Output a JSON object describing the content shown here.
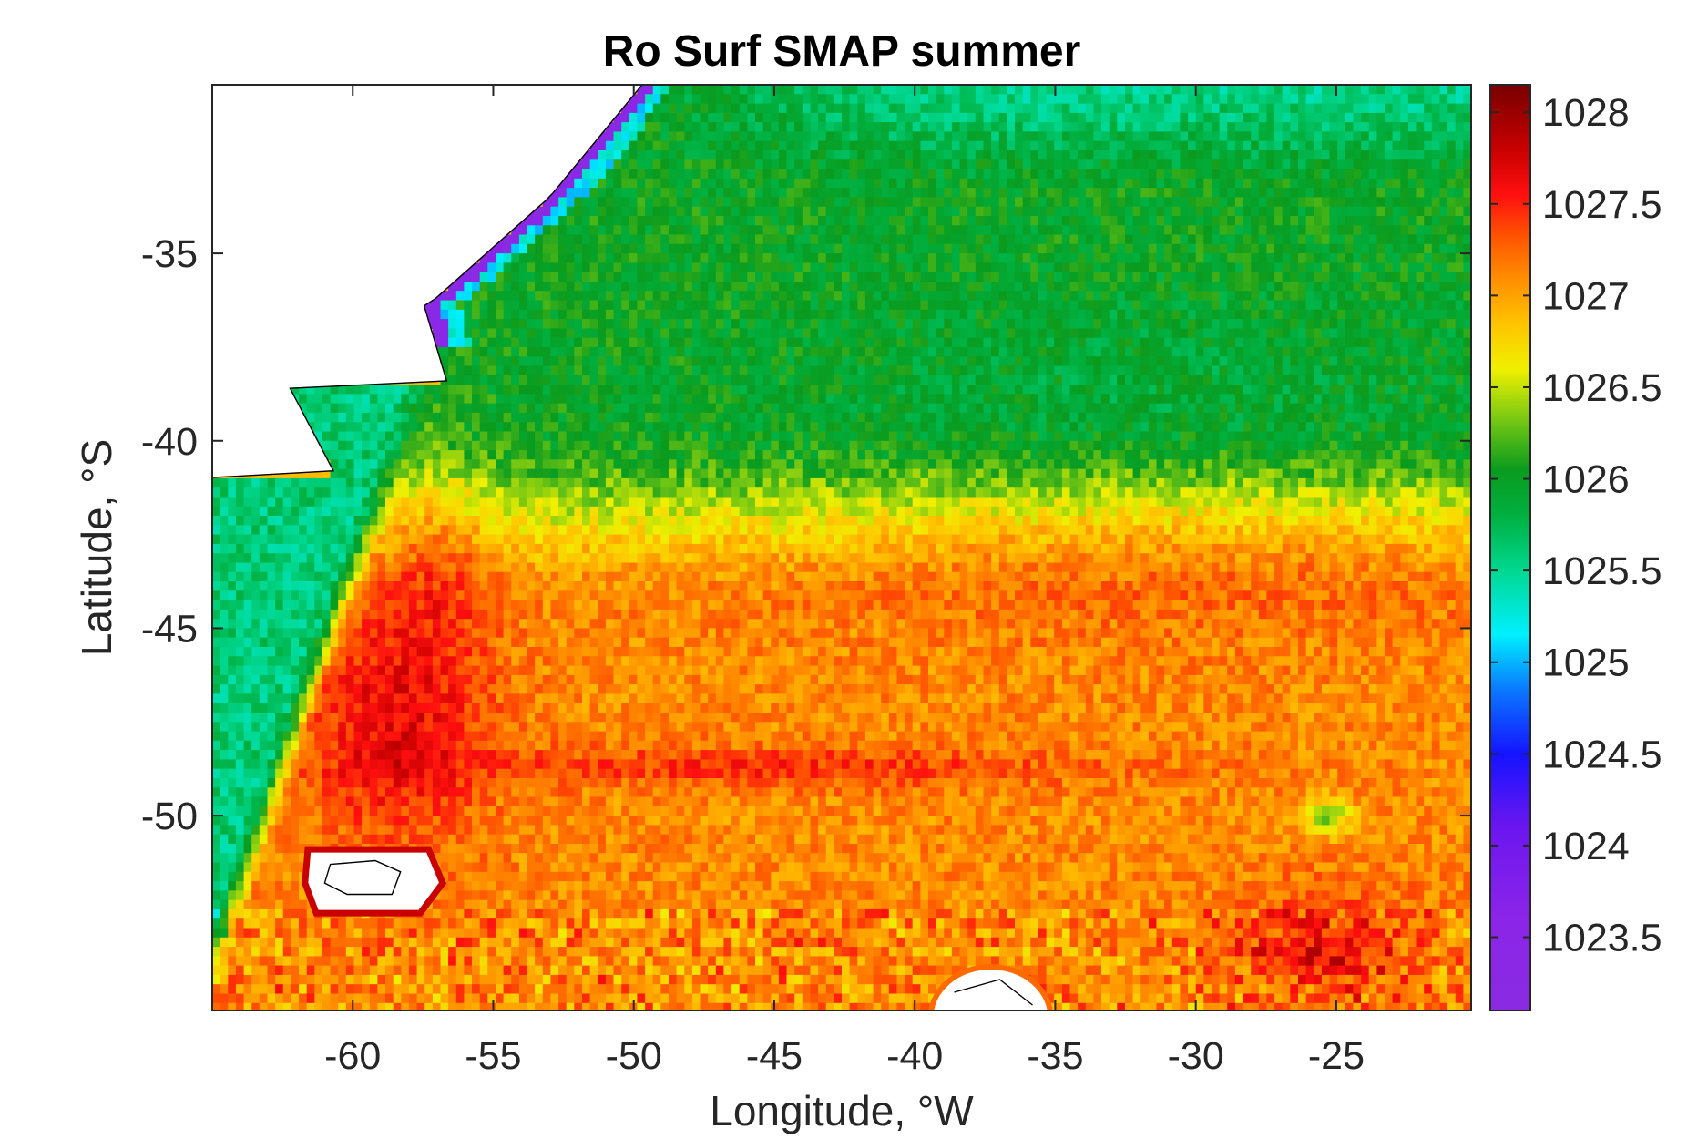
{
  "chart_data": {
    "type": "heatmap",
    "title": "Ro Surf SMAP summer",
    "xlabel": "Longitude, °W",
    "ylabel": "Latitude, °S",
    "xlim": [
      -65,
      -20.2
    ],
    "ylim": [
      -55.2,
      -30.5
    ],
    "x_ticks": [
      {
        "value": -60,
        "label": "-60"
      },
      {
        "value": -55,
        "label": "-55"
      },
      {
        "value": -50,
        "label": "-50"
      },
      {
        "value": -45,
        "label": "-45"
      },
      {
        "value": -40,
        "label": "-40"
      },
      {
        "value": -35,
        "label": "-35"
      },
      {
        "value": -30,
        "label": "-30"
      },
      {
        "value": -25,
        "label": "-25"
      }
    ],
    "y_ticks": [
      {
        "value": -35,
        "label": "-35"
      },
      {
        "value": -40,
        "label": "-40"
      },
      {
        "value": -45,
        "label": "-45"
      },
      {
        "value": -50,
        "label": "-50"
      }
    ],
    "colorbar": {
      "range": [
        1023.1,
        1028.15
      ],
      "ticks": [
        {
          "value": 1028,
          "label": "1028"
        },
        {
          "value": 1027.5,
          "label": "1027.5"
        },
        {
          "value": 1027,
          "label": "1027"
        },
        {
          "value": 1026.5,
          "label": "1026.5"
        },
        {
          "value": 1026,
          "label": "1026"
        },
        {
          "value": 1025.5,
          "label": "1025.5"
        },
        {
          "value": 1025,
          "label": "1025"
        },
        {
          "value": 1024.5,
          "label": "1024.5"
        },
        {
          "value": 1024,
          "label": "1024"
        },
        {
          "value": 1023.5,
          "label": "1023.5"
        }
      ],
      "colormap": [
        {
          "value": 1023.1,
          "color": "#8a2be2"
        },
        {
          "value": 1023.6,
          "color": "#8b25e8"
        },
        {
          "value": 1024.1,
          "color": "#6b16ef"
        },
        {
          "value": 1024.5,
          "color": "#1414ff"
        },
        {
          "value": 1024.85,
          "color": "#0a78ff"
        },
        {
          "value": 1025.15,
          "color": "#00f0ff"
        },
        {
          "value": 1025.5,
          "color": "#00d890"
        },
        {
          "value": 1025.8,
          "color": "#00b040"
        },
        {
          "value": 1026.05,
          "color": "#0a9b1e"
        },
        {
          "value": 1026.3,
          "color": "#6dc414"
        },
        {
          "value": 1026.6,
          "color": "#f0f000"
        },
        {
          "value": 1026.85,
          "color": "#ffc300"
        },
        {
          "value": 1027.1,
          "color": "#ff8c00"
        },
        {
          "value": 1027.3,
          "color": "#ff5a00"
        },
        {
          "value": 1027.55,
          "color": "#ff0f0f"
        },
        {
          "value": 1027.8,
          "color": "#c80000"
        },
        {
          "value": 1028.15,
          "color": "#780000"
        }
      ]
    },
    "field_features": {
      "background_level": 1026.9,
      "land_color": "#ffffff",
      "coastline_color": "#000000",
      "nan_color": "#ffffff",
      "northern_band": {
        "lat_min": -41.5,
        "lat_max": -30.5,
        "value": 1026.0,
        "north_edge_value": 1025.5
      },
      "southern_band": {
        "lat_min": -55.2,
        "lat_max": -44,
        "value": 1027.1
      },
      "shelf_band": {
        "value": 1025.6,
        "description_visible": false
      },
      "plata_plume": {
        "value": 1023.3
      },
      "max_region": {
        "lon": -58.5,
        "lat": -47.5,
        "value": 1027.6
      },
      "secondary_max": {
        "lon": -25.5,
        "lat": -53.5,
        "value": 1027.6
      },
      "green_eddy": {
        "lon": -25.3,
        "lat": -50,
        "value": 1026.1
      }
    }
  }
}
